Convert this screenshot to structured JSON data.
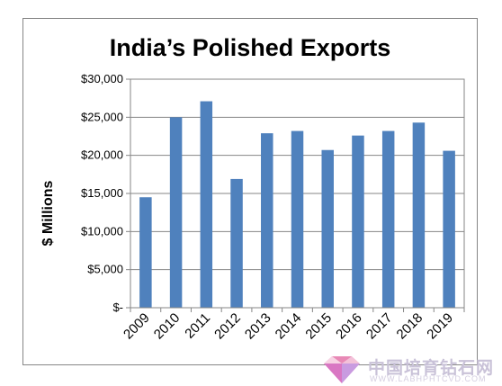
{
  "chart_data": {
    "type": "bar",
    "title": "India’s Polished Exports",
    "ylabel": "$ Millions",
    "xlabel": "",
    "categories": [
      "2009",
      "2010",
      "2011",
      "2012",
      "2013",
      "2014",
      "2015",
      "2016",
      "2017",
      "2018",
      "2019"
    ],
    "values": [
      14500,
      25000,
      27100,
      16900,
      22900,
      23200,
      20700,
      22600,
      23200,
      24300,
      20600
    ],
    "ylim": [
      0,
      30000
    ],
    "yticks": [
      0,
      5000,
      10000,
      15000,
      20000,
      25000,
      30000
    ],
    "ytick_labels": [
      "$-",
      "$5,000",
      "$10,000",
      "$15,000",
      "$20,000",
      "$25,000",
      "$30,000"
    ],
    "grid": true,
    "legend": "none",
    "bar_color": "#4f81bd"
  },
  "watermark": {
    "text_cn": "中国培育钻石网",
    "url": "WWW.LABHPHTCVD.COM"
  }
}
